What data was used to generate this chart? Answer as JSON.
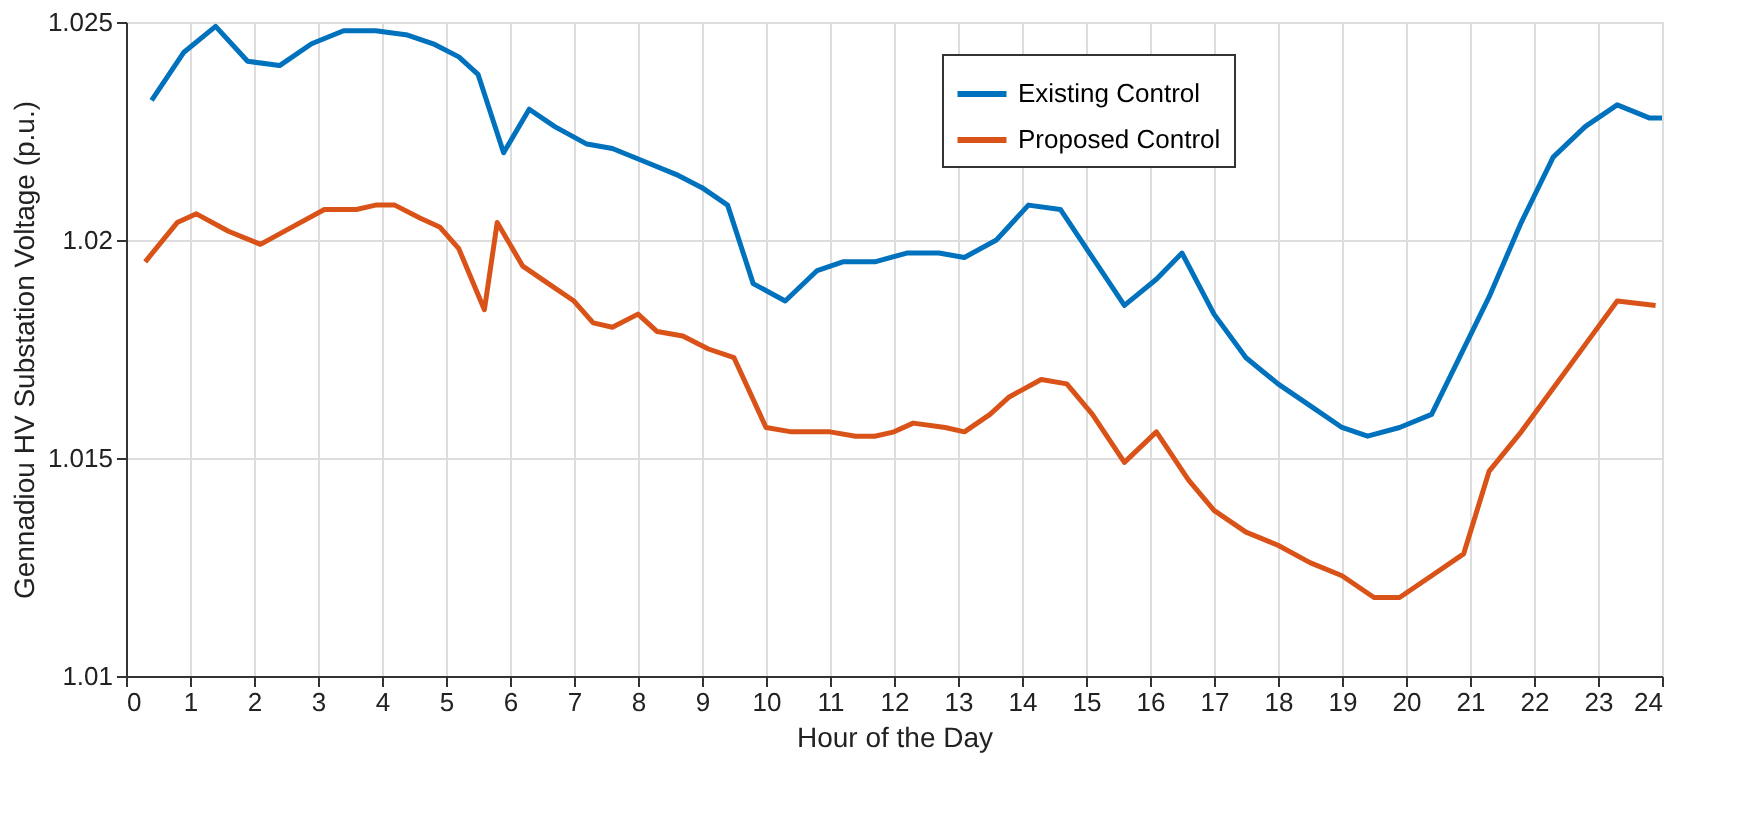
{
  "chart_data": {
    "type": "line",
    "xlabel": "Hour of the Day",
    "ylabel": "Gennadiou HV Substation Voltage (p.u.)",
    "xlim": [
      0,
      24
    ],
    "xticks": [
      0,
      1,
      2,
      3,
      4,
      5,
      6,
      7,
      8,
      9,
      10,
      11,
      12,
      13,
      14,
      15,
      16,
      17,
      18,
      19,
      20,
      21,
      22,
      23,
      24
    ],
    "ylim": [
      1.01,
      1.025
    ],
    "yticks": [
      1.01,
      1.015,
      1.02,
      1.025
    ],
    "grid": true,
    "legend": "top right",
    "line_style": "solid",
    "marker": "none",
    "series": [
      {
        "name": "Existing Control",
        "color": "#0072bd",
        "x": [
          0.4,
          0.9,
          1.4,
          1.9,
          2.4,
          2.9,
          3.4,
          3.9,
          4.4,
          4.8,
          5.2,
          5.5,
          5.9,
          6.3,
          6.7,
          7.2,
          7.6,
          8.1,
          8.6,
          9.0,
          9.4,
          9.8,
          10.3,
          10.8,
          11.2,
          11.7,
          12.2,
          12.7,
          13.1,
          13.6,
          14.1,
          14.6,
          15.1,
          15.6,
          16.1,
          16.5,
          17.0,
          17.5,
          18.0,
          18.5,
          19.0,
          19.4,
          19.9,
          20.4,
          20.8,
          21.3,
          21.8,
          22.3,
          22.8,
          23.3,
          23.8,
          24
        ],
        "values": [
          1.0232,
          1.0243,
          1.0249,
          1.0241,
          1.024,
          1.0245,
          1.0248,
          1.0248,
          1.0247,
          1.0245,
          1.0242,
          1.0238,
          1.022,
          1.023,
          1.0226,
          1.0222,
          1.0221,
          1.0218,
          1.0215,
          1.0212,
          1.0208,
          1.019,
          1.0186,
          1.0193,
          1.0195,
          1.0195,
          1.0197,
          1.0197,
          1.0196,
          1.02,
          1.0208,
          1.0207,
          1.0196,
          1.0185,
          1.0191,
          1.0197,
          1.0183,
          1.0173,
          1.0167,
          1.0162,
          1.0157,
          1.0155,
          1.0157,
          1.016,
          1.0172,
          1.0187,
          1.0204,
          1.0219,
          1.0226,
          1.0231,
          1.0228,
          1.0228
        ]
      },
      {
        "name": "Proposed Control",
        "color": "#d95319",
        "x": [
          0.3,
          0.8,
          1.1,
          1.6,
          2.1,
          2.6,
          3.1,
          3.6,
          3.9,
          4.2,
          4.6,
          4.9,
          5.2,
          5.6,
          5.8,
          6.2,
          6.6,
          7.0,
          7.3,
          7.6,
          8.0,
          8.3,
          8.7,
          9.1,
          9.5,
          10.0,
          10.4,
          11.0,
          11.4,
          11.7,
          12.0,
          12.3,
          12.8,
          13.1,
          13.5,
          13.8,
          14.3,
          14.7,
          15.1,
          15.6,
          16.1,
          16.6,
          17.0,
          17.5,
          18.0,
          18.5,
          19.0,
          19.5,
          19.9,
          20.4,
          20.9,
          21.3,
          21.8,
          22.3,
          22.8,
          23.3,
          23.9
        ],
        "values": [
          1.0195,
          1.0204,
          1.0206,
          1.0202,
          1.0199,
          1.0203,
          1.0207,
          1.0207,
          1.0208,
          1.0208,
          1.0205,
          1.0203,
          1.0198,
          1.0184,
          1.0204,
          1.0194,
          1.019,
          1.0186,
          1.0181,
          1.018,
          1.0183,
          1.0179,
          1.0178,
          1.0175,
          1.0173,
          1.0157,
          1.0156,
          1.0156,
          1.0155,
          1.0155,
          1.0156,
          1.0158,
          1.0157,
          1.0156,
          1.016,
          1.0164,
          1.0168,
          1.0167,
          1.016,
          1.0149,
          1.0156,
          1.0145,
          1.0138,
          1.0133,
          1.013,
          1.0126,
          1.0123,
          1.0118,
          1.0118,
          1.0123,
          1.0128,
          1.0147,
          1.0156,
          1.0166,
          1.0176,
          1.0186,
          1.0185
        ]
      }
    ]
  }
}
